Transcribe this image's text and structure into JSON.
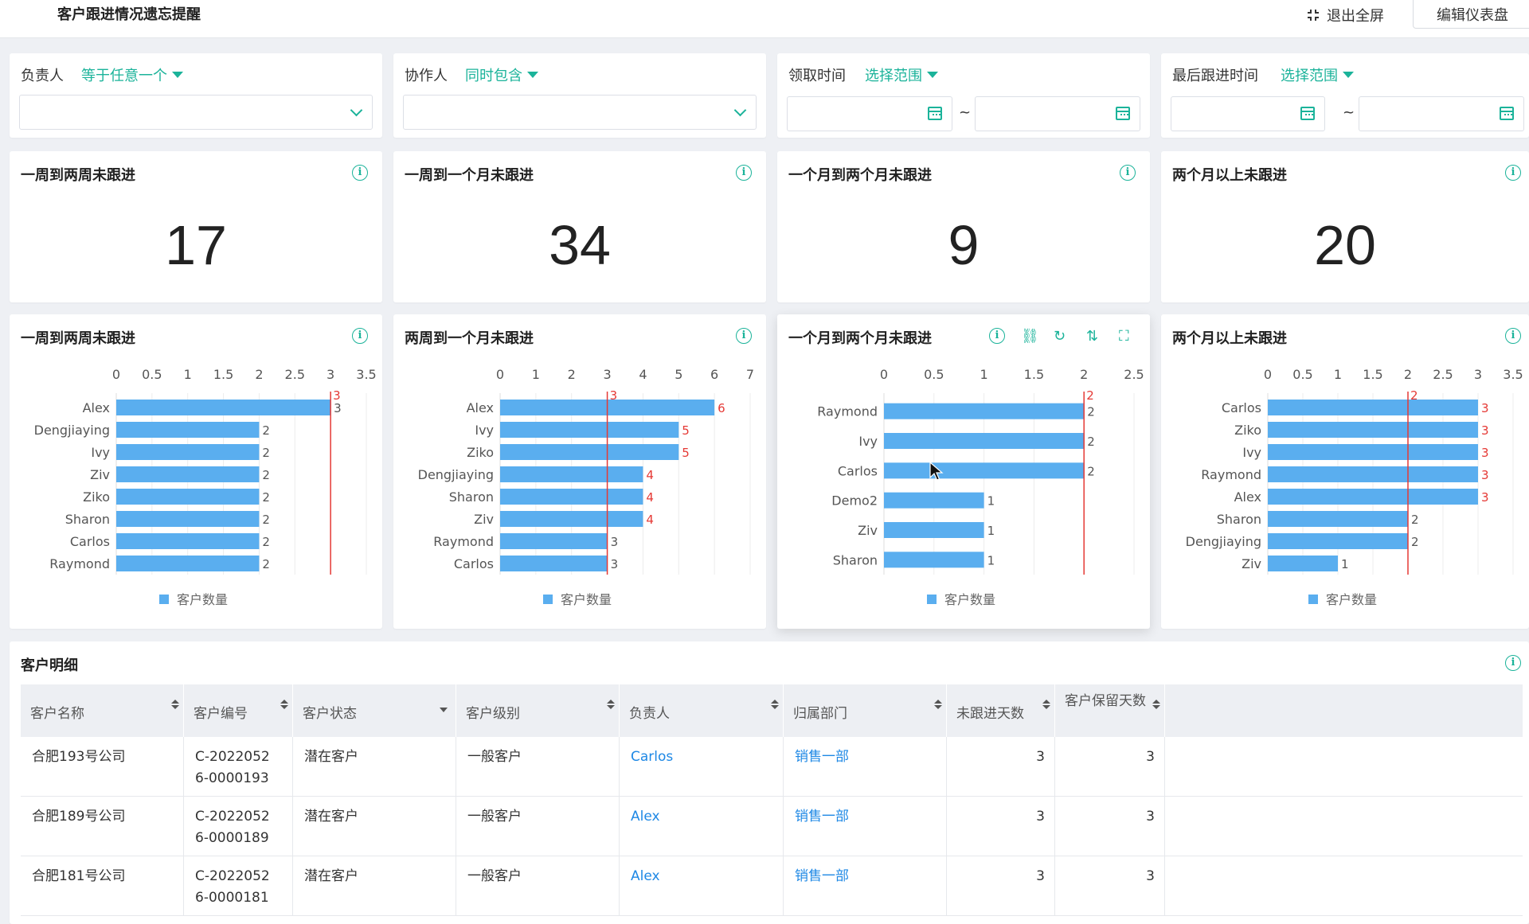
{
  "header": {
    "title": "客户跟进情况遗忘提醒",
    "exit_label": "退出全屏",
    "edit_label": "编辑仪表盘"
  },
  "filters": [
    {
      "label": "负责人",
      "operator": "等于任意一个",
      "type": "select"
    },
    {
      "label": "协作人",
      "operator": "同时包含",
      "type": "select"
    },
    {
      "label": "领取时间",
      "operator": "选择范围",
      "type": "date"
    },
    {
      "label": "最后跟进时间",
      "operator": "选择范围",
      "type": "date"
    }
  ],
  "date_separator": "~",
  "kpis": [
    {
      "title": "一周到两周未跟进",
      "value": "17"
    },
    {
      "title": "一周到一个月未跟进",
      "value": "34"
    },
    {
      "title": "一个月到两个月未跟进",
      "value": "9"
    },
    {
      "title": "两个月以上未跟进",
      "value": "20"
    }
  ],
  "chart_titles": [
    "一周到两周未跟进",
    "两周到一个月未跟进",
    "一个月到两个月未跟进",
    "两个月以上未跟进"
  ],
  "chart_data": [
    {
      "type": "bar",
      "orientation": "horizontal",
      "categories": [
        "Alex",
        "Dengjiaying",
        "Ivy",
        "Ziv",
        "Ziko",
        "Sharon",
        "Carlos",
        "Raymond"
      ],
      "series": [
        {
          "name": "客户数量",
          "values": [
            3,
            2,
            2,
            2,
            2,
            2,
            2,
            2
          ]
        }
      ],
      "xticks": [
        "0",
        "0.5",
        "1",
        "1.5",
        "2",
        "2.5",
        "3",
        "3.5"
      ],
      "xlim": [
        0,
        3.5
      ],
      "reference_line": 3,
      "reference_label": "3",
      "legend": "bottom",
      "color": "#5aaeef"
    },
    {
      "type": "bar",
      "orientation": "horizontal",
      "categories": [
        "Alex",
        "Ivy",
        "Ziko",
        "Dengjiaying",
        "Sharon",
        "Ziv",
        "Raymond",
        "Carlos"
      ],
      "series": [
        {
          "name": "客户数量",
          "values": [
            6,
            5,
            5,
            4,
            4,
            4,
            3,
            3
          ]
        }
      ],
      "xticks": [
        "0",
        "1",
        "2",
        "3",
        "4",
        "5",
        "6",
        "7"
      ],
      "xlim": [
        0,
        7
      ],
      "reference_line": 3,
      "reference_label": "3",
      "legend": "bottom",
      "color": "#5aaeef"
    },
    {
      "type": "bar",
      "orientation": "horizontal",
      "categories": [
        "Raymond",
        "Ivy",
        "Carlos",
        "Demo2",
        "Ziv",
        "Sharon"
      ],
      "series": [
        {
          "name": "客户数量",
          "values": [
            2,
            2,
            2,
            1,
            1,
            1
          ]
        }
      ],
      "xticks": [
        "0",
        "0.5",
        "1",
        "1.5",
        "2",
        "2.5"
      ],
      "xlim": [
        0,
        2.5
      ],
      "reference_line": 2,
      "reference_label": "2",
      "legend": "bottom",
      "color": "#5aaeef"
    },
    {
      "type": "bar",
      "orientation": "horizontal",
      "categories": [
        "Carlos",
        "Ziko",
        "Ivy",
        "Raymond",
        "Alex",
        "Sharon",
        "Dengjiaying",
        "Ziv"
      ],
      "series": [
        {
          "name": "客户数量",
          "values": [
            3,
            3,
            3,
            3,
            3,
            2,
            2,
            1
          ]
        }
      ],
      "xticks": [
        "0",
        "0.5",
        "1",
        "1.5",
        "2",
        "2.5",
        "3",
        "3.5"
      ],
      "xlim": [
        0,
        3.5
      ],
      "reference_line": 2,
      "reference_label": "2",
      "legend": "bottom",
      "color": "#5aaeef"
    }
  ],
  "table": {
    "title": "客户明细",
    "columns": [
      "客户名称",
      "客户编号",
      "客户状态",
      "客户级别",
      "负责人",
      "归属部门",
      "未跟进天数",
      "客户保留天数"
    ],
    "rows": [
      {
        "name": "合肥193号公司",
        "code_line1": "C-2022052",
        "code_line2": "6-0000193",
        "status": "潜在客户",
        "level": "一般客户",
        "owner": "Carlos",
        "dept": "销售一部",
        "days_no_follow": "3",
        "retain_days": "3"
      },
      {
        "name": "合肥189号公司",
        "code_line1": "C-2022052",
        "code_line2": "6-0000189",
        "status": "潜在客户",
        "level": "一般客户",
        "owner": "Alex",
        "dept": "销售一部",
        "days_no_follow": "3",
        "retain_days": "3"
      },
      {
        "name": "合肥181号公司",
        "code_line1": "C-2022052",
        "code_line2": "6-0000181",
        "status": "潜在客户",
        "level": "一般客户",
        "owner": "Alex",
        "dept": "销售一部",
        "days_no_follow": "3",
        "retain_days": "3"
      }
    ]
  }
}
